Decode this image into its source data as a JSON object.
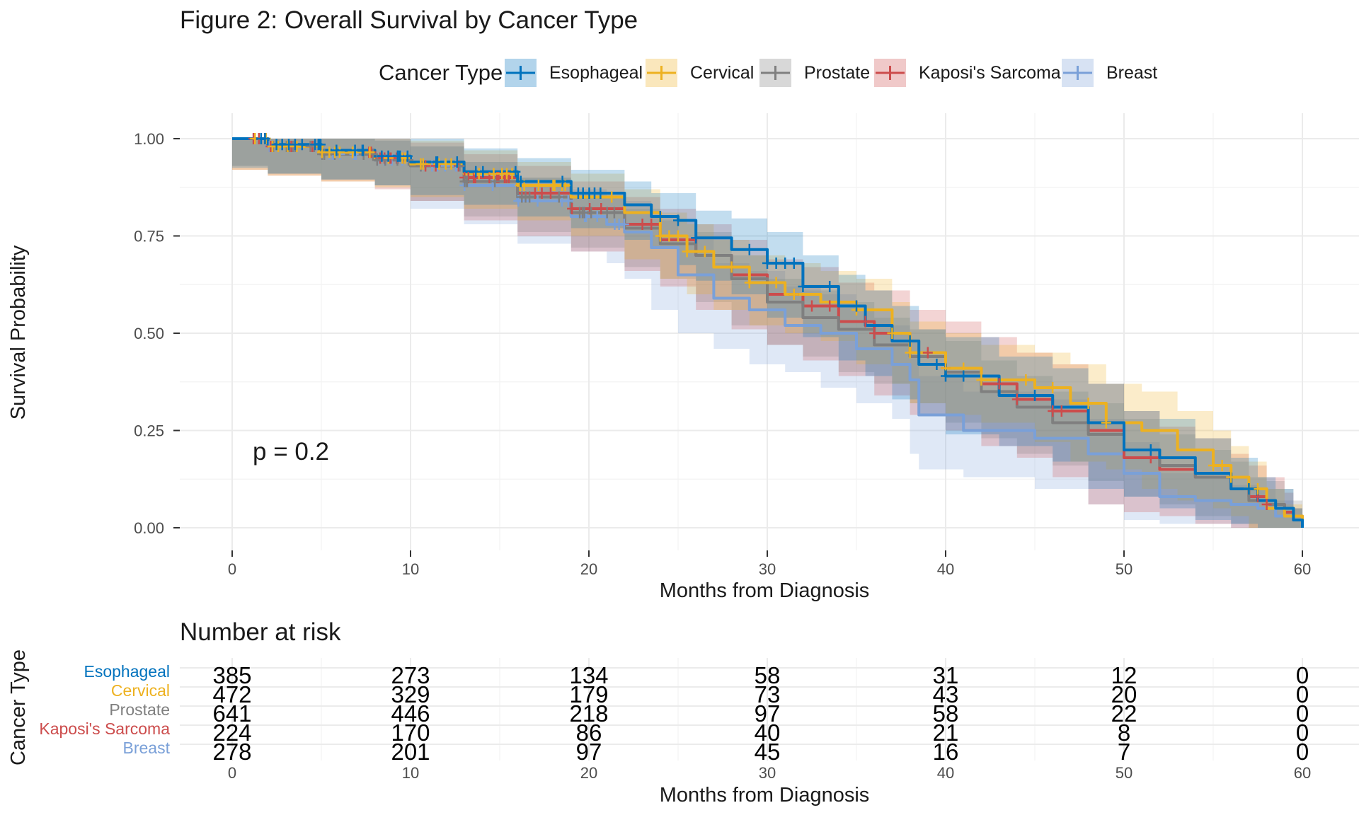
{
  "chart_data": [
    {
      "type": "line",
      "subtype": "kaplan-meier",
      "title": "Figure 2: Overall Survival by Cancer Type",
      "xlabel": "Months from Diagnosis",
      "ylabel": "Survival Probability",
      "xlim": [
        0,
        60
      ],
      "ylim": [
        0,
        1
      ],
      "x_ticks": [
        0,
        10,
        20,
        30,
        40,
        50,
        60
      ],
      "y_ticks": [
        0,
        0.25,
        0.5,
        0.75,
        1.0
      ],
      "y_tick_labels": [
        "0.00",
        "0.25",
        "0.50",
        "0.75",
        "1.00"
      ],
      "grid": true,
      "confidence_bands": true,
      "legend": {
        "title": "Cancer Type",
        "placement": "top"
      },
      "annotation": "p = 0.2",
      "series": [
        {
          "name": "Esophageal",
          "color": "#0072BD",
          "x": [
            0,
            2,
            5,
            8,
            10,
            13,
            16,
            19,
            22,
            23.5,
            25,
            26,
            28,
            30,
            32,
            34,
            35.5,
            37,
            38.5,
            40,
            43,
            46,
            48,
            50,
            52,
            54,
            56,
            57.5,
            58.5,
            59.5,
            60
          ],
          "y": [
            1.0,
            0.985,
            0.97,
            0.955,
            0.94,
            0.915,
            0.89,
            0.86,
            0.83,
            0.8,
            0.79,
            0.745,
            0.715,
            0.68,
            0.62,
            0.57,
            0.52,
            0.48,
            0.42,
            0.39,
            0.34,
            0.31,
            0.27,
            0.2,
            0.18,
            0.14,
            0.1,
            0.07,
            0.05,
            0.02,
            0.0
          ],
          "censor_x": [
            24,
            25,
            26,
            29,
            30,
            30.5,
            31,
            31.5,
            32,
            33.5,
            35,
            38,
            39.5,
            40,
            41,
            45,
            51.5,
            57
          ],
          "band": [
            0.06,
            0.06,
            0.06,
            0.06,
            0.06,
            0.06,
            0.06,
            0.06,
            0.06,
            0.06,
            0.07,
            0.07,
            0.08,
            0.08,
            0.08,
            0.08,
            0.09,
            0.09,
            0.09,
            0.1,
            0.1,
            0.1,
            0.1,
            0.1,
            0.1,
            0.09,
            0.08,
            0.06,
            0.05,
            0.03,
            0.0
          ]
        },
        {
          "name": "Cervical",
          "color": "#EDB120",
          "x": [
            0,
            2,
            5,
            8,
            10,
            13,
            16,
            19,
            22,
            24,
            25.5,
            27,
            29,
            31,
            33,
            35,
            37,
            38,
            40,
            42,
            45,
            47,
            49,
            51,
            53,
            55,
            56,
            57,
            58,
            59,
            60
          ],
          "y": [
            1.0,
            0.98,
            0.965,
            0.95,
            0.935,
            0.91,
            0.88,
            0.85,
            0.81,
            0.75,
            0.71,
            0.67,
            0.63,
            0.6,
            0.58,
            0.56,
            0.5,
            0.45,
            0.41,
            0.38,
            0.36,
            0.32,
            0.27,
            0.25,
            0.2,
            0.16,
            0.13,
            0.1,
            0.05,
            0.03,
            0.0
          ],
          "censor_x": [
            24,
            24.5,
            25,
            25.5,
            26.5,
            28,
            29,
            30.5,
            31.5,
            35,
            37,
            38,
            40,
            41,
            42,
            44.5,
            46,
            48,
            49,
            55,
            55.5,
            56,
            57,
            57.5
          ],
          "band": [
            0.06,
            0.06,
            0.06,
            0.06,
            0.06,
            0.06,
            0.06,
            0.06,
            0.06,
            0.06,
            0.07,
            0.07,
            0.07,
            0.08,
            0.08,
            0.08,
            0.08,
            0.08,
            0.09,
            0.09,
            0.09,
            0.1,
            0.1,
            0.1,
            0.1,
            0.09,
            0.08,
            0.07,
            0.05,
            0.03,
            0.0
          ]
        },
        {
          "name": "Prostate",
          "color": "#7F7F7F",
          "x": [
            0,
            2,
            5,
            8,
            10,
            13,
            16,
            19,
            22,
            24,
            26,
            28,
            30,
            32,
            34,
            36,
            38,
            40,
            42,
            44,
            46,
            48,
            50,
            52,
            54,
            56,
            57,
            58,
            59,
            59.5,
            60
          ],
          "y": [
            1.0,
            0.98,
            0.96,
            0.945,
            0.93,
            0.89,
            0.85,
            0.81,
            0.77,
            0.73,
            0.7,
            0.64,
            0.58,
            0.54,
            0.51,
            0.47,
            0.44,
            0.4,
            0.35,
            0.31,
            0.27,
            0.24,
            0.2,
            0.16,
            0.13,
            0.1,
            0.07,
            0.06,
            0.05,
            0.03,
            0.0
          ],
          "censor_x": [],
          "band": [
            0.05,
            0.05,
            0.05,
            0.05,
            0.05,
            0.05,
            0.05,
            0.05,
            0.05,
            0.06,
            0.06,
            0.06,
            0.06,
            0.07,
            0.07,
            0.07,
            0.07,
            0.08,
            0.08,
            0.08,
            0.08,
            0.08,
            0.08,
            0.08,
            0.07,
            0.07,
            0.06,
            0.06,
            0.05,
            0.04,
            0.0
          ]
        },
        {
          "name": "Kaposi's Sarcoma",
          "color": "#CC4C4C",
          "x": [
            0,
            2,
            5,
            8,
            10,
            13,
            16,
            19,
            22,
            24,
            26,
            28,
            30,
            32,
            34,
            36,
            38,
            40,
            42,
            44,
            46,
            48,
            50,
            52,
            54,
            56,
            57,
            58,
            59,
            59.5,
            60
          ],
          "y": [
            1.0,
            0.98,
            0.965,
            0.95,
            0.93,
            0.9,
            0.86,
            0.82,
            0.78,
            0.74,
            0.7,
            0.65,
            0.6,
            0.57,
            0.53,
            0.5,
            0.45,
            0.41,
            0.37,
            0.33,
            0.3,
            0.25,
            0.18,
            0.15,
            0.13,
            0.1,
            0.08,
            0.06,
            0.04,
            0.02,
            0.0
          ],
          "censor_x": [
            23,
            23.5,
            31.5,
            32.5,
            33.5,
            35.5,
            36,
            39,
            40,
            43,
            44,
            46,
            46.5,
            51.5,
            57.5,
            58
          ],
          "band": [
            0.06,
            0.06,
            0.06,
            0.06,
            0.06,
            0.06,
            0.07,
            0.07,
            0.07,
            0.08,
            0.08,
            0.09,
            0.09,
            0.1,
            0.1,
            0.11,
            0.11,
            0.12,
            0.12,
            0.12,
            0.12,
            0.12,
            0.12,
            0.11,
            0.1,
            0.09,
            0.08,
            0.07,
            0.05,
            0.03,
            0.0
          ]
        },
        {
          "name": "Breast",
          "color": "#7AA0D8",
          "x": [
            0,
            2,
            5,
            8,
            10,
            13,
            16,
            19,
            21,
            22,
            23.5,
            25,
            27,
            29,
            31,
            33,
            35,
            37,
            38,
            38.5,
            41,
            45,
            48,
            50,
            52,
            54,
            56,
            57.5,
            58.5,
            59.5,
            60
          ],
          "y": [
            1.0,
            0.98,
            0.96,
            0.945,
            0.93,
            0.88,
            0.84,
            0.8,
            0.78,
            0.76,
            0.72,
            0.65,
            0.59,
            0.56,
            0.52,
            0.5,
            0.46,
            0.42,
            0.38,
            0.29,
            0.25,
            0.23,
            0.19,
            0.14,
            0.08,
            0.07,
            0.06,
            0.05,
            0.03,
            0.02,
            0.0
          ],
          "censor_x": [],
          "band": [
            0.05,
            0.05,
            0.05,
            0.05,
            0.05,
            0.06,
            0.06,
            0.07,
            0.07,
            0.08,
            0.08,
            0.09,
            0.09,
            0.1,
            0.1,
            0.1,
            0.1,
            0.1,
            0.1,
            0.1,
            0.1,
            0.1,
            0.09,
            0.08,
            0.06,
            0.06,
            0.05,
            0.05,
            0.04,
            0.03,
            0.0
          ]
        }
      ]
    },
    {
      "type": "table",
      "title": "Number at risk",
      "ylabel": "Cancer Type",
      "xlabel": "Months from Diagnosis",
      "x_ticks": [
        0,
        10,
        20,
        30,
        40,
        50,
        60
      ],
      "rows": [
        {
          "name": "Esophageal",
          "color": "#0072BD",
          "values": [
            385,
            273,
            134,
            58,
            31,
            12,
            0
          ]
        },
        {
          "name": "Cervical",
          "color": "#EDB120",
          "values": [
            472,
            329,
            179,
            73,
            43,
            20,
            0
          ]
        },
        {
          "name": "Prostate",
          "color": "#7F7F7F",
          "values": [
            641,
            446,
            218,
            97,
            58,
            22,
            0
          ]
        },
        {
          "name": "Kaposi's Sarcoma",
          "color": "#CC4C4C",
          "values": [
            224,
            170,
            86,
            40,
            21,
            8,
            0
          ]
        },
        {
          "name": "Breast",
          "color": "#7AA0D8",
          "values": [
            278,
            201,
            97,
            45,
            16,
            7,
            0
          ]
        }
      ]
    }
  ]
}
